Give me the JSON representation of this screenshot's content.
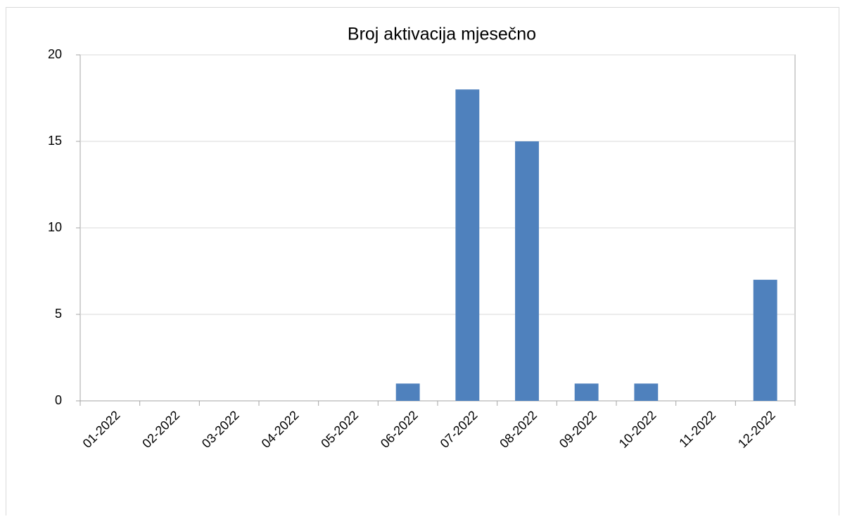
{
  "chart_data": {
    "type": "bar",
    "title": "Broj aktivacija mjesečno",
    "categories": [
      "01-2022",
      "02-2022",
      "03-2022",
      "04-2022",
      "05-2022",
      "06-2022",
      "07-2022",
      "08-2022",
      "09-2022",
      "10-2022",
      "11-2022",
      "12-2022"
    ],
    "values": [
      0,
      0,
      0,
      0,
      0,
      1,
      18,
      15,
      1,
      1,
      0,
      7
    ],
    "color": "#4f81bd",
    "ylim": [
      0,
      20
    ],
    "yticks": [
      0,
      5,
      10,
      15,
      20
    ],
    "grid": true
  }
}
